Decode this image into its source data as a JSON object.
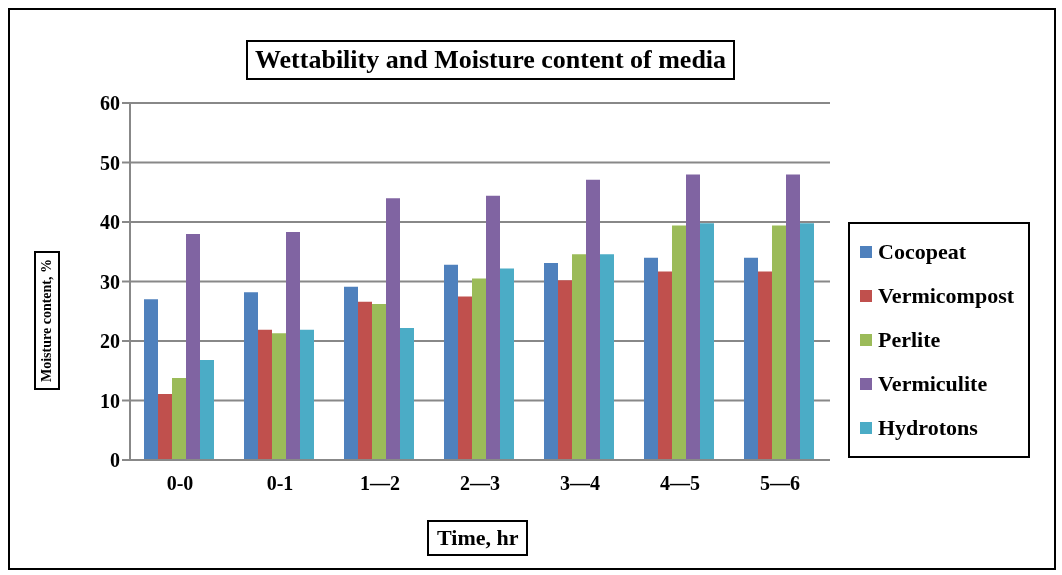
{
  "chart_data": {
    "type": "bar",
    "title": "Wettability and Moisture content of media",
    "xlabel": "Time, hr",
    "ylabel": "Moisture content, %",
    "categories": [
      "0-0",
      "0-1",
      "1—2",
      "2—3",
      "3—4",
      "4—5",
      "5—6"
    ],
    "series": [
      {
        "name": "Cocopeat",
        "color": "#4f81bd",
        "values": [
          27,
          28.2,
          29.1,
          32.8,
          33.1,
          34,
          34
        ]
      },
      {
        "name": "Vermicompost",
        "color": "#c0504d",
        "values": [
          11.1,
          21.9,
          26.6,
          27.5,
          30.2,
          31.7,
          31.7
        ]
      },
      {
        "name": "Perlite",
        "color": "#9bbb59",
        "values": [
          13.8,
          21.3,
          26.2,
          30.5,
          34.6,
          39.4,
          39.4
        ]
      },
      {
        "name": "Vermiculite",
        "color": "#8064a2",
        "values": [
          38,
          38.3,
          44,
          44.4,
          47.1,
          48,
          48
        ]
      },
      {
        "name": "Hydrotons",
        "color": "#4bacc6",
        "values": [
          16.8,
          21.9,
          22.2,
          32.2,
          34.6,
          39.8,
          39.8
        ]
      }
    ],
    "ylim": [
      0,
      60
    ],
    "yticks": [
      0,
      10,
      20,
      30,
      40,
      50,
      60
    ],
    "grid": "y",
    "legend": "right"
  }
}
